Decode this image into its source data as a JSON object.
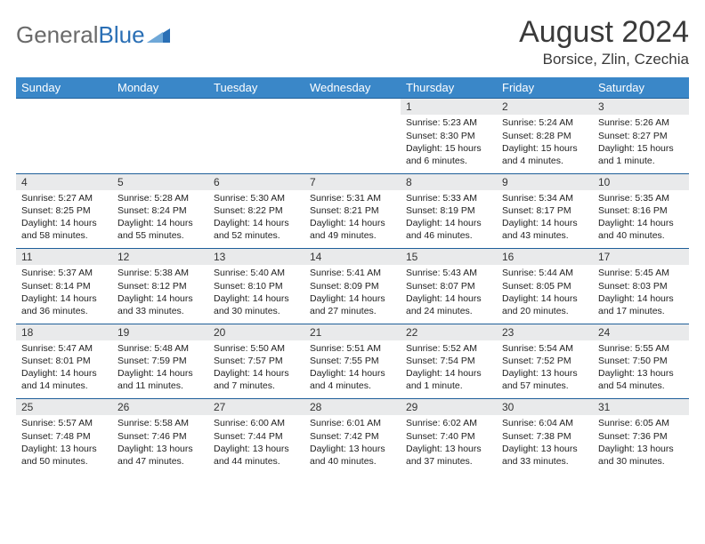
{
  "logo": {
    "part1": "General",
    "part2": "Blue"
  },
  "title": "August 2024",
  "location": "Borsice, Zlin, Czechia",
  "colors": {
    "header_bg": "#3a87c8",
    "header_text": "#ffffff",
    "daynum_bg": "#e9eaeb",
    "rule": "#1f5f99",
    "body_text": "#222222",
    "title_text": "#3a3a3a",
    "logo_gray": "#6a6a6a",
    "logo_blue": "#2a6fb5"
  },
  "dow": [
    "Sunday",
    "Monday",
    "Tuesday",
    "Wednesday",
    "Thursday",
    "Friday",
    "Saturday"
  ],
  "weeks": [
    [
      null,
      null,
      null,
      null,
      {
        "n": "1",
        "sr": "5:23 AM",
        "ss": "8:30 PM",
        "dl": "15 hours and 6 minutes."
      },
      {
        "n": "2",
        "sr": "5:24 AM",
        "ss": "8:28 PM",
        "dl": "15 hours and 4 minutes."
      },
      {
        "n": "3",
        "sr": "5:26 AM",
        "ss": "8:27 PM",
        "dl": "15 hours and 1 minute."
      }
    ],
    [
      {
        "n": "4",
        "sr": "5:27 AM",
        "ss": "8:25 PM",
        "dl": "14 hours and 58 minutes."
      },
      {
        "n": "5",
        "sr": "5:28 AM",
        "ss": "8:24 PM",
        "dl": "14 hours and 55 minutes."
      },
      {
        "n": "6",
        "sr": "5:30 AM",
        "ss": "8:22 PM",
        "dl": "14 hours and 52 minutes."
      },
      {
        "n": "7",
        "sr": "5:31 AM",
        "ss": "8:21 PM",
        "dl": "14 hours and 49 minutes."
      },
      {
        "n": "8",
        "sr": "5:33 AM",
        "ss": "8:19 PM",
        "dl": "14 hours and 46 minutes."
      },
      {
        "n": "9",
        "sr": "5:34 AM",
        "ss": "8:17 PM",
        "dl": "14 hours and 43 minutes."
      },
      {
        "n": "10",
        "sr": "5:35 AM",
        "ss": "8:16 PM",
        "dl": "14 hours and 40 minutes."
      }
    ],
    [
      {
        "n": "11",
        "sr": "5:37 AM",
        "ss": "8:14 PM",
        "dl": "14 hours and 36 minutes."
      },
      {
        "n": "12",
        "sr": "5:38 AM",
        "ss": "8:12 PM",
        "dl": "14 hours and 33 minutes."
      },
      {
        "n": "13",
        "sr": "5:40 AM",
        "ss": "8:10 PM",
        "dl": "14 hours and 30 minutes."
      },
      {
        "n": "14",
        "sr": "5:41 AM",
        "ss": "8:09 PM",
        "dl": "14 hours and 27 minutes."
      },
      {
        "n": "15",
        "sr": "5:43 AM",
        "ss": "8:07 PM",
        "dl": "14 hours and 24 minutes."
      },
      {
        "n": "16",
        "sr": "5:44 AM",
        "ss": "8:05 PM",
        "dl": "14 hours and 20 minutes."
      },
      {
        "n": "17",
        "sr": "5:45 AM",
        "ss": "8:03 PM",
        "dl": "14 hours and 17 minutes."
      }
    ],
    [
      {
        "n": "18",
        "sr": "5:47 AM",
        "ss": "8:01 PM",
        "dl": "14 hours and 14 minutes."
      },
      {
        "n": "19",
        "sr": "5:48 AM",
        "ss": "7:59 PM",
        "dl": "14 hours and 11 minutes."
      },
      {
        "n": "20",
        "sr": "5:50 AM",
        "ss": "7:57 PM",
        "dl": "14 hours and 7 minutes."
      },
      {
        "n": "21",
        "sr": "5:51 AM",
        "ss": "7:55 PM",
        "dl": "14 hours and 4 minutes."
      },
      {
        "n": "22",
        "sr": "5:52 AM",
        "ss": "7:54 PM",
        "dl": "14 hours and 1 minute."
      },
      {
        "n": "23",
        "sr": "5:54 AM",
        "ss": "7:52 PM",
        "dl": "13 hours and 57 minutes."
      },
      {
        "n": "24",
        "sr": "5:55 AM",
        "ss": "7:50 PM",
        "dl": "13 hours and 54 minutes."
      }
    ],
    [
      {
        "n": "25",
        "sr": "5:57 AM",
        "ss": "7:48 PM",
        "dl": "13 hours and 50 minutes."
      },
      {
        "n": "26",
        "sr": "5:58 AM",
        "ss": "7:46 PM",
        "dl": "13 hours and 47 minutes."
      },
      {
        "n": "27",
        "sr": "6:00 AM",
        "ss": "7:44 PM",
        "dl": "13 hours and 44 minutes."
      },
      {
        "n": "28",
        "sr": "6:01 AM",
        "ss": "7:42 PM",
        "dl": "13 hours and 40 minutes."
      },
      {
        "n": "29",
        "sr": "6:02 AM",
        "ss": "7:40 PM",
        "dl": "13 hours and 37 minutes."
      },
      {
        "n": "30",
        "sr": "6:04 AM",
        "ss": "7:38 PM",
        "dl": "13 hours and 33 minutes."
      },
      {
        "n": "31",
        "sr": "6:05 AM",
        "ss": "7:36 PM",
        "dl": "13 hours and 30 minutes."
      }
    ]
  ],
  "labels": {
    "sunrise": "Sunrise: ",
    "sunset": "Sunset: ",
    "daylight": "Daylight: "
  }
}
